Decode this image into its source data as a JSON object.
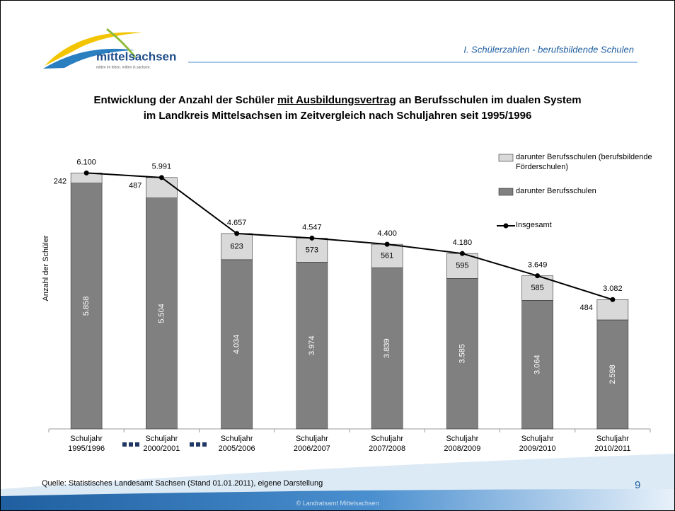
{
  "header": {
    "logo": "mittelsachsen",
    "tagline": "mitten im leben. mitten in sachsen.",
    "section": "I. Schülerzahlen - berufsbildende Schulen"
  },
  "chart_data": {
    "type": "stacked-bar-line",
    "title": [
      "Entwicklung der Anzahl der Schüler",
      "mit Ausbildungsvertrag",
      "an Berufsschulen im dualen System",
      "im Landkreis Mittelsachsen im Zeitvergleich nach Schuljahren seit 1995/1996"
    ],
    "ylabel": "Anzahl der Schüler",
    "categories": [
      "Schuljahr 1995/1996",
      "Schuljahr 2000/2001",
      "Schuljahr 2005/2006",
      "Schuljahr 2006/2007",
      "Schuljahr 2007/2008",
      "Schuljahr 2008/2009",
      "Schuljahr 2009/2010",
      "Schuljahr 2010/2011"
    ],
    "ylim": [
      0,
      7000
    ],
    "series": [
      {
        "name": "darunter Berufsschulen",
        "color": "#808080",
        "kind": "bar",
        "values": [
          5858,
          5504,
          4034,
          3974,
          3839,
          3585,
          3064,
          2598
        ],
        "value_labels": [
          "5.858",
          "5.504",
          "4.034",
          "3.974",
          "3.839",
          "3.585",
          "3.064",
          "2.598"
        ]
      },
      {
        "name": "darunter Berufsschulen (berufsbildende Förderschulen)",
        "color": "#d9d9d9",
        "kind": "bar",
        "values": [
          242,
          487,
          623,
          573,
          561,
          595,
          585,
          484
        ]
      },
      {
        "name": "Insgesamt",
        "color": "#000000",
        "kind": "line",
        "values": [
          6100,
          5991,
          4657,
          4547,
          4400,
          4180,
          3649,
          3082
        ],
        "value_labels": [
          "6.100",
          "5.991",
          "4.657",
          "4.547",
          "4.400",
          "4.180",
          "3.649",
          "3.082"
        ]
      }
    ],
    "legend_order": [
      1,
      0,
      2
    ]
  },
  "footer": {
    "source": "Quelle: Statistisches Landesamt Sachsen (Stand 01.01.2011), eigene Darstellung",
    "page": "9",
    "copyright": "© Landratsamt Mittelsachsen"
  }
}
